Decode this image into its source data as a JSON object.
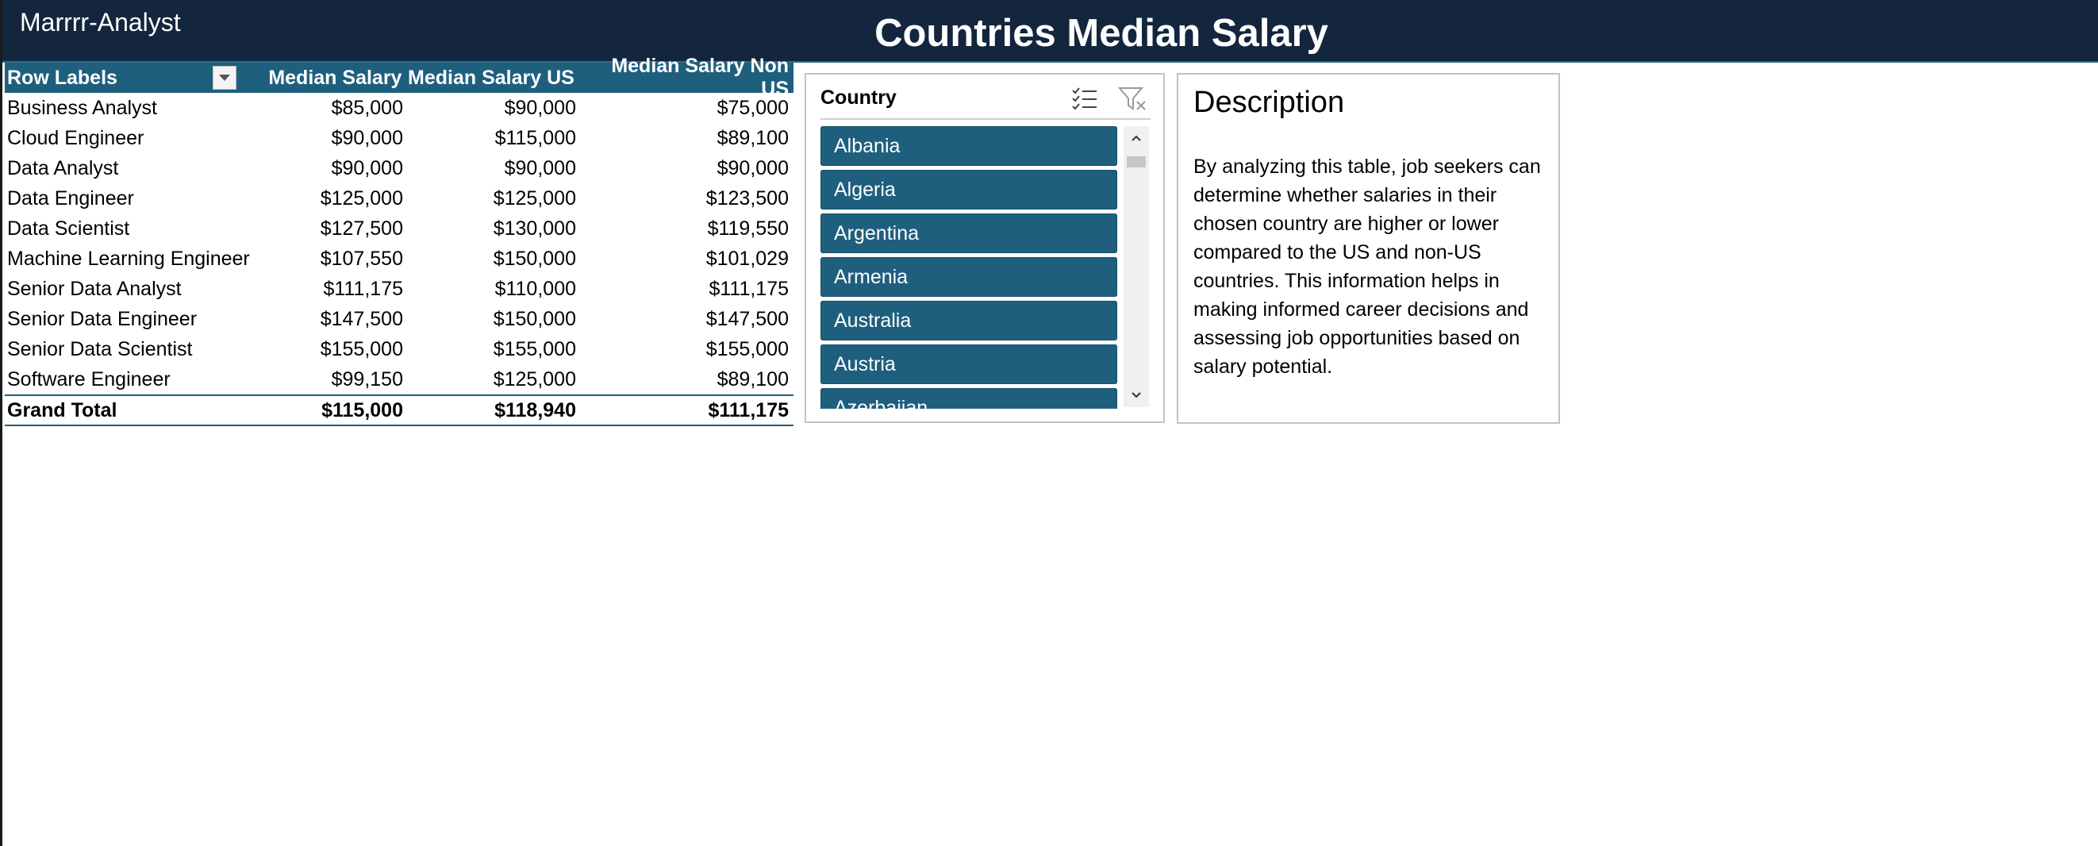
{
  "header": {
    "brand": "Marrrr-Analyst",
    "title": "Countries Median Salary"
  },
  "pivot": {
    "columns": [
      "Row Labels",
      "Median Salary",
      "Median Salary US",
      "Median Salary Non US"
    ],
    "rows": [
      {
        "label": "Business Analyst",
        "median": "$85,000",
        "us": "$90,000",
        "non_us": "$75,000"
      },
      {
        "label": "Cloud Engineer",
        "median": "$90,000",
        "us": "$115,000",
        "non_us": "$89,100"
      },
      {
        "label": "Data Analyst",
        "median": "$90,000",
        "us": "$90,000",
        "non_us": "$90,000"
      },
      {
        "label": "Data Engineer",
        "median": "$125,000",
        "us": "$125,000",
        "non_us": "$123,500"
      },
      {
        "label": "Data Scientist",
        "median": "$127,500",
        "us": "$130,000",
        "non_us": "$119,550"
      },
      {
        "label": "Machine Learning Engineer",
        "median": "$107,550",
        "us": "$150,000",
        "non_us": "$101,029"
      },
      {
        "label": "Senior Data Analyst",
        "median": "$111,175",
        "us": "$110,000",
        "non_us": "$111,175"
      },
      {
        "label": "Senior Data Engineer",
        "median": "$147,500",
        "us": "$150,000",
        "non_us": "$147,500"
      },
      {
        "label": "Senior Data Scientist",
        "median": "$155,000",
        "us": "$155,000",
        "non_us": "$155,000"
      },
      {
        "label": "Software Engineer",
        "median": "$99,150",
        "us": "$125,000",
        "non_us": "$89,100"
      }
    ],
    "total": {
      "label": "Grand Total",
      "median": "$115,000",
      "us": "$118,940",
      "non_us": "$111,175"
    }
  },
  "slicer": {
    "title": "Country",
    "multi_select_icon": "multi-select-icon",
    "clear_filter_icon": "clear-filter-icon",
    "items": [
      "Albania",
      "Algeria",
      "Argentina",
      "Armenia",
      "Australia",
      "Austria",
      "Azerbaijan"
    ]
  },
  "description": {
    "title": "Description",
    "body": "By analyzing this table, job seekers can determine whether salaries in their chosen country are higher or lower compared to the US and non-US countries. This information helps in making informed career decisions and assessing job opportunities based on salary potential."
  },
  "colors": {
    "banner": "#13263d",
    "accent": "#1f5f7e"
  }
}
